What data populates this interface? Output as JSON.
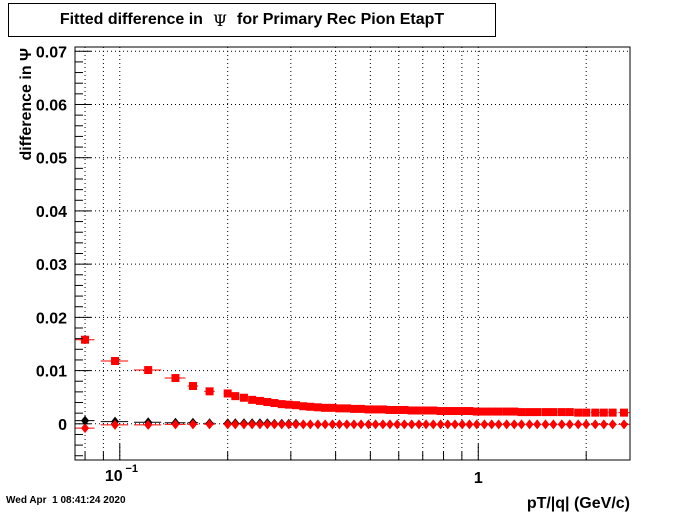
{
  "title": {
    "part1": "Fitted difference in",
    "symbol": "Ψ",
    "part2": "for Primary Rec Pion EtapT"
  },
  "footer": {
    "timestamp": "Wed Apr  1 08:41:24 2020"
  },
  "chart_data": {
    "type": "scatter",
    "title": "Fitted difference in Ψ for Primary Rec Pion EtapT",
    "xlabel": "pT/|q| (GeV/c)",
    "ylabel": "difference in Ψ",
    "x_scale": "log",
    "xlim": [
      0.075,
      2.65
    ],
    "ylim": [
      -0.0068,
      0.0708
    ],
    "grid": true,
    "legend": "none",
    "x_ticks": [
      {
        "value": 0.1,
        "base": "10",
        "exp": "−1"
      },
      {
        "value": 1,
        "label": "1"
      }
    ],
    "y_ticks": [
      {
        "value": 0,
        "label": "0"
      },
      {
        "value": 0.01,
        "label": "0.01"
      },
      {
        "value": 0.02,
        "label": "0.02"
      },
      {
        "value": 0.03,
        "label": "0.03"
      },
      {
        "value": 0.04,
        "label": "0.04"
      },
      {
        "value": 0.05,
        "label": "0.05"
      },
      {
        "value": 0.06,
        "label": "0.06"
      },
      {
        "value": 0.07,
        "label": "0.07"
      }
    ],
    "series": [
      {
        "marker": "square",
        "color": "#ff0000",
        "x": [
          0.08,
          0.097,
          0.12,
          0.143,
          0.16,
          0.178,
          0.2,
          0.21,
          0.222,
          0.234,
          0.246,
          0.258,
          0.27,
          0.283,
          0.296,
          0.31,
          0.325,
          0.34,
          0.357,
          0.374,
          0.392,
          0.41,
          0.43,
          0.45,
          0.471,
          0.494,
          0.517,
          0.542,
          0.567,
          0.594,
          0.622,
          0.652,
          0.683,
          0.715,
          0.749,
          0.785,
          0.822,
          0.861,
          0.902,
          0.945,
          0.99,
          1.04,
          1.09,
          1.14,
          1.2,
          1.26,
          1.32,
          1.39,
          1.46,
          1.54,
          1.62,
          1.71,
          1.8,
          1.9,
          2.0,
          2.12,
          2.24,
          2.37,
          2.55
        ],
        "y": [
          0.0158,
          0.0118,
          0.0101,
          0.0086,
          0.0071,
          0.0061,
          0.0057,
          0.0052,
          0.0049,
          0.0045,
          0.0043,
          0.0041,
          0.0039,
          0.0037,
          0.0036,
          0.0035,
          0.0033,
          0.0032,
          0.0031,
          0.003,
          0.003,
          0.0029,
          0.0029,
          0.0028,
          0.0028,
          0.0027,
          0.0027,
          0.0027,
          0.0026,
          0.0026,
          0.0026,
          0.0025,
          0.0025,
          0.0025,
          0.0025,
          0.0024,
          0.0024,
          0.0024,
          0.0024,
          0.0024,
          0.0023,
          0.0023,
          0.0023,
          0.0023,
          0.0023,
          0.0023,
          0.0022,
          0.0022,
          0.0022,
          0.0022,
          0.0022,
          0.0022,
          0.0022,
          0.0021,
          0.0021,
          0.0021,
          0.0021,
          0.0021,
          0.0021
        ],
        "xerr": [
          0.005,
          0.0085,
          0.0105,
          0.0095,
          0.0055,
          0.006,
          0.005,
          0.005,
          0.006,
          0.006,
          0.006,
          0.006,
          0.006,
          0.0065,
          0.0065,
          0.007,
          0.0075,
          0.0075,
          0.008,
          0.0085,
          0.009,
          0.009,
          0.01,
          0.01,
          0.0105,
          0.011,
          0.0115,
          0.0125,
          0.0125,
          0.0135,
          0.014,
          0.015,
          0.0155,
          0.016,
          0.017,
          0.018,
          0.019,
          0.0195,
          0.0205,
          0.0215,
          0.0225,
          0.025,
          0.025,
          0.025,
          0.03,
          0.03,
          0.03,
          0.035,
          0.035,
          0.04,
          0.04,
          0.045,
          0.045,
          0.05,
          0.05,
          0.06,
          0.06,
          0.065,
          0.09
        ]
      },
      {
        "marker": "diamond",
        "color": "#000000",
        "x": [
          0.08,
          0.097,
          0.12,
          0.143,
          0.16,
          0.178,
          0.2,
          0.21,
          0.222,
          0.234,
          0.246,
          0.258,
          0.27,
          0.283,
          0.296,
          0.31
        ],
        "y": [
          0.0006,
          0.0004,
          0.0003,
          0.0002,
          0.0002,
          0.0001,
          0.0001,
          0.0001,
          0.0001,
          0.0001,
          0.0001,
          0.0001,
          0.0,
          0.0,
          0.0,
          0.0
        ],
        "xerr": [
          0.005,
          0.0085,
          0.0105,
          0.0095,
          0.0055,
          0.006,
          0.005,
          0.005,
          0.006,
          0.006,
          0.006,
          0.006,
          0.006,
          0.0065,
          0.0065,
          0.007
        ]
      },
      {
        "marker": "diamond",
        "color": "#ff0000",
        "x": [
          0.08,
          0.097,
          0.12,
          0.143,
          0.16,
          0.178,
          0.2,
          0.21,
          0.222,
          0.234,
          0.246,
          0.258,
          0.27,
          0.283,
          0.296,
          0.31,
          0.325,
          0.34,
          0.357,
          0.374,
          0.392,
          0.41,
          0.43,
          0.45,
          0.471,
          0.494,
          0.517,
          0.542,
          0.567,
          0.594,
          0.622,
          0.652,
          0.683,
          0.715,
          0.749,
          0.785,
          0.822,
          0.861,
          0.902,
          0.945,
          0.99,
          1.04,
          1.09,
          1.14,
          1.2,
          1.26,
          1.32,
          1.39,
          1.46,
          1.54,
          1.62,
          1.71,
          1.8,
          1.9,
          2.0,
          2.12,
          2.24,
          2.37,
          2.55
        ],
        "y": [
          -0.0008,
          -0.0002,
          -0.0002,
          -0.0001,
          -0.0001,
          -0.0001,
          -0.0001,
          -0.0001,
          -0.0001,
          -0.0001,
          -0.0001,
          -0.0001,
          -0.0001,
          -0.0001,
          -0.0001,
          -0.0001,
          -0.0001,
          -0.0001,
          -0.0001,
          -0.0001,
          -0.0001,
          -0.0001,
          -0.0001,
          -0.0001,
          -0.0001,
          -0.0001,
          -0.0001,
          -0.0001,
          -0.0001,
          -0.0001,
          -0.0001,
          -0.0001,
          -0.0001,
          -0.0001,
          -0.0001,
          -0.0001,
          -0.0001,
          -0.0001,
          -0.0001,
          -0.0001,
          -0.0001,
          -0.0001,
          -0.0001,
          -0.0001,
          -0.0001,
          -0.0001,
          -0.0001,
          -0.0001,
          -0.0001,
          -0.0001,
          -0.0001,
          -0.0001,
          -0.0001,
          -0.0001,
          -0.0001,
          -0.0001,
          -0.0001,
          -0.0001,
          -0.0001
        ],
        "xerr": [
          0.005,
          0.0085,
          0.0105,
          0.0095,
          0.0055,
          0.006,
          0.005,
          0.005,
          0.006,
          0.006,
          0.006,
          0.006,
          0.006,
          0.0065,
          0.0065,
          0.007,
          0.0075,
          0.0075,
          0.008,
          0.0085,
          0.009,
          0.009,
          0.01,
          0.01,
          0.0105,
          0.011,
          0.0115,
          0.0125,
          0.0125,
          0.0135,
          0.014,
          0.015,
          0.0155,
          0.016,
          0.017,
          0.018,
          0.019,
          0.0195,
          0.0205,
          0.0215,
          0.0225,
          0.025,
          0.025,
          0.025,
          0.03,
          0.03,
          0.03,
          0.035,
          0.035,
          0.04,
          0.04,
          0.045,
          0.045,
          0.05,
          0.05,
          0.06,
          0.06,
          0.065,
          0.09
        ]
      }
    ]
  }
}
